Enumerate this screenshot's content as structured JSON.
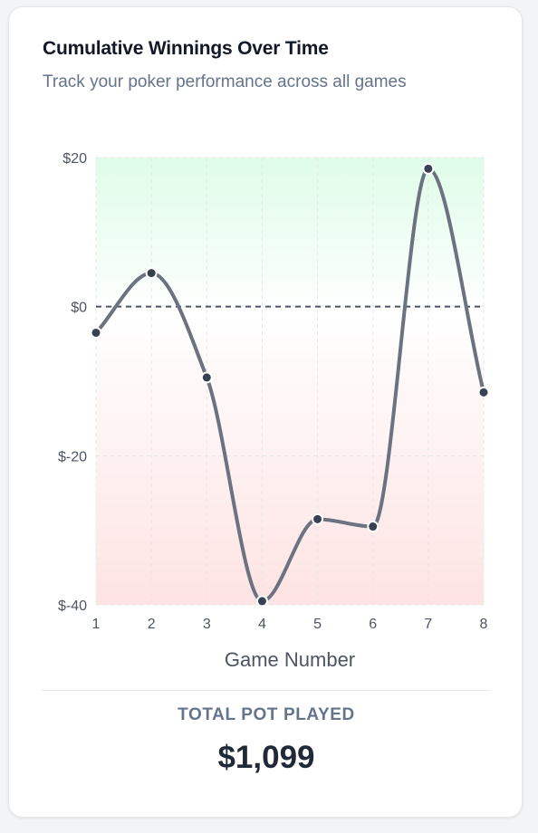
{
  "card": {
    "title": "Cumulative Winnings Over Time",
    "subtitle": "Track your poker performance across all games"
  },
  "chart_data": {
    "type": "line",
    "title": "Cumulative Winnings Over Time",
    "subtitle": "Track your poker performance across all games",
    "xlabel": "Game Number",
    "ylabel": "",
    "x": [
      1,
      2,
      3,
      4,
      5,
      6,
      7,
      8
    ],
    "series": [
      {
        "values": [
          -3.5,
          4.5,
          -9.5,
          -39.5,
          -28.5,
          -29.5,
          18.5,
          -11.5
        ],
        "color": "#6b7280"
      }
    ],
    "xlim": [
      1,
      8
    ],
    "ylim": [
      -40,
      20
    ],
    "y_ticks": [
      20,
      0,
      -20,
      -40
    ],
    "y_tick_labels": [
      "$20",
      "$0",
      "$-20",
      "$-40"
    ],
    "x_ticks": [
      1,
      2,
      3,
      4,
      5,
      6,
      7,
      8
    ],
    "x_tick_labels": [
      "1",
      "2",
      "3",
      "4",
      "5",
      "6",
      "7",
      "8"
    ],
    "reference_line": {
      "y": 0,
      "style": "dashed",
      "color": "#4b5563"
    },
    "grid": true,
    "background_gradient": {
      "top": "#dcfce7",
      "bottom": "#fee2e2"
    },
    "legend": "none"
  },
  "summary": {
    "label": "TOTAL POT PLAYED",
    "value": "$1,099"
  }
}
